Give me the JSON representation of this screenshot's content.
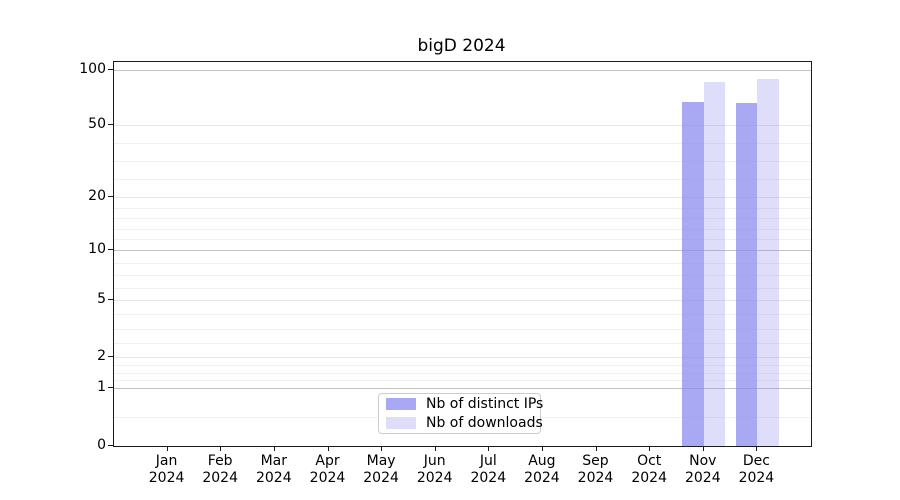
{
  "chart_title": "bigD 2024",
  "chart_data": {
    "type": "bar",
    "title": "bigD 2024",
    "categories": [
      "Jan 2024",
      "Feb 2024",
      "Mar 2024",
      "Apr 2024",
      "May 2024",
      "Jun 2024",
      "Jul 2024",
      "Aug 2024",
      "Sep 2024",
      "Oct 2024",
      "Nov 2024",
      "Dec 2024"
    ],
    "series": [
      {
        "name": "Nb of distinct IPs",
        "color": "rgba(136,136,238,0.72)",
        "values": [
          0,
          0,
          0,
          0,
          0,
          0,
          0,
          0,
          0,
          0,
          67,
          66
        ]
      },
      {
        "name": "Nb of downloads",
        "color": "rgba(136,136,238,0.28)",
        "values": [
          0,
          0,
          0,
          0,
          0,
          0,
          0,
          0,
          0,
          0,
          86,
          89
        ]
      }
    ],
    "xlabel": "",
    "ylabel": "",
    "y_axis": {
      "scale": "symlog",
      "tick_values": [
        0,
        1,
        2,
        5,
        10,
        20,
        50,
        100
      ],
      "range_top": 110
    },
    "grid": "horizontal, log minor lines",
    "legend": {
      "position": "inside-bottom-center",
      "entries": [
        "Nb of distinct IPs",
        "Nb of downloads"
      ]
    }
  },
  "colors": {
    "bar_distinct_ips": "rgba(136,136,238,0.72)",
    "bar_downloads": "rgba(136,136,238,0.28)",
    "grid_decade": "#c4c4c4",
    "grid_labeled": "#e6e6e6",
    "grid_minor": "#f0f0f0",
    "axis_spine": "#1a1a1a",
    "text": "#000000"
  }
}
